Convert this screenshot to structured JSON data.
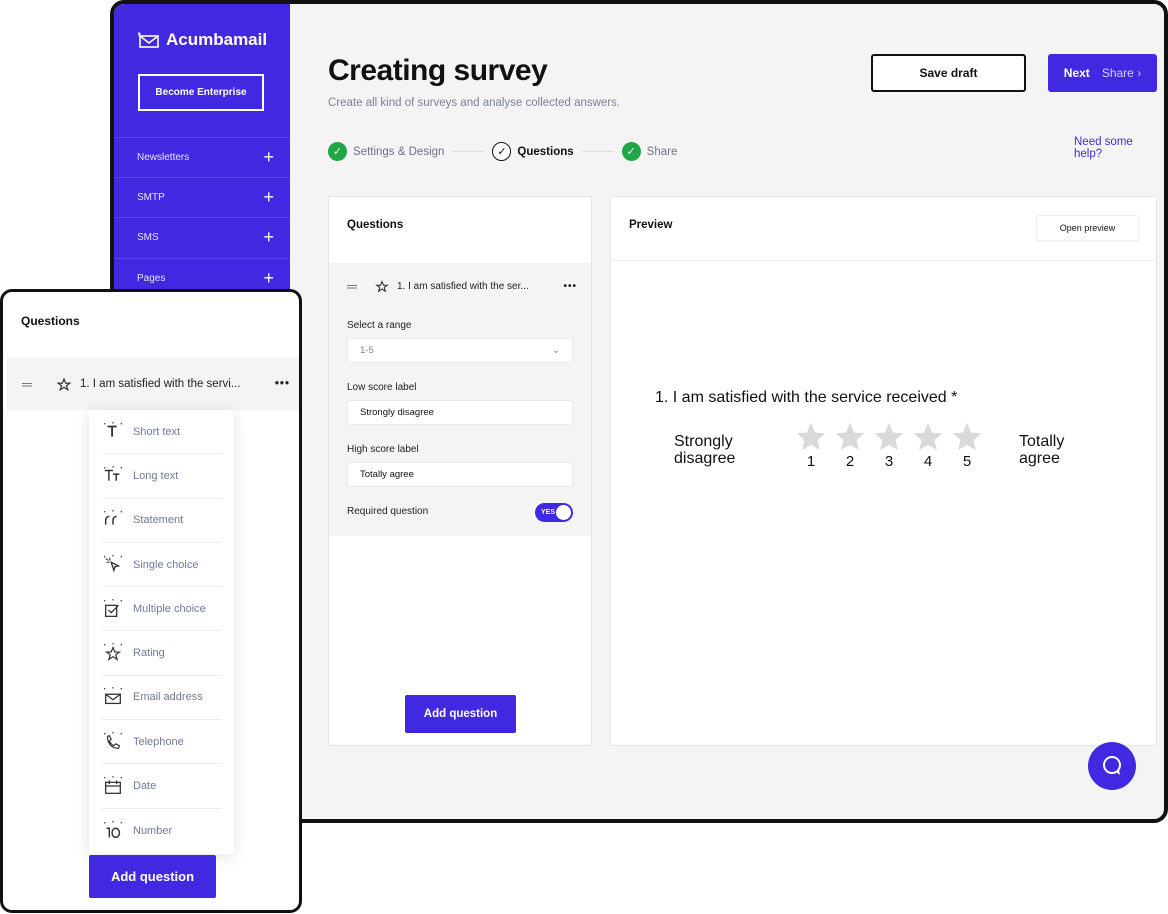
{
  "brand": {
    "name": "Acumbamail",
    "accent": "#4029e0",
    "success": "#1fa645"
  },
  "sidebar": {
    "cta": "Become Enterprise",
    "items": [
      {
        "label": "Newsletters"
      },
      {
        "label": "SMTP"
      },
      {
        "label": "SMS"
      },
      {
        "label": "Pages"
      }
    ]
  },
  "header": {
    "title": "Creating survey",
    "subtitle": "Create all kind of surveys and analyse collected answers.",
    "save_draft": "Save draft",
    "next": "Next",
    "next_target": "Share",
    "help": "Need some help?"
  },
  "steps": [
    {
      "label": "Settings & Design",
      "state": "done"
    },
    {
      "label": "Questions",
      "state": "current"
    },
    {
      "label": "Share",
      "state": "done"
    }
  ],
  "questions_panel": {
    "title": "Questions",
    "question": "1. I am satisfied with the ser...",
    "range_label": "Select a range",
    "range_value": "1-5",
    "low_label": "Low score label",
    "low_value": "Strongly disagree",
    "high_label": "High score label",
    "high_value": "Totally agree",
    "required_label": "Required question",
    "required_toggle": "YES",
    "required": true,
    "add_button": "Add question"
  },
  "preview": {
    "title": "Preview",
    "open_button": "Open preview",
    "question": "1. I am satisfied with the service received *",
    "low": "Strongly disagree",
    "high": "Totally agree",
    "scale": [
      "1",
      "2",
      "3",
      "4",
      "5"
    ]
  },
  "mobile": {
    "title": "Questions",
    "question": "1. I am satisfied with the servi...",
    "add_button": "Add question",
    "menu": [
      {
        "label": "Short text",
        "icon": "short-text"
      },
      {
        "label": "Long text",
        "icon": "long-text"
      },
      {
        "label": "Statement",
        "icon": "quote"
      },
      {
        "label": "Single choice",
        "icon": "cursor-click"
      },
      {
        "label": "Multiple choice",
        "icon": "checkbox"
      },
      {
        "label": "Rating",
        "icon": "star"
      },
      {
        "label": "Email address",
        "icon": "envelope"
      },
      {
        "label": "Telephone",
        "icon": "phone"
      },
      {
        "label": "Date",
        "icon": "calendar"
      },
      {
        "label": "Number",
        "icon": "number-10"
      }
    ]
  }
}
